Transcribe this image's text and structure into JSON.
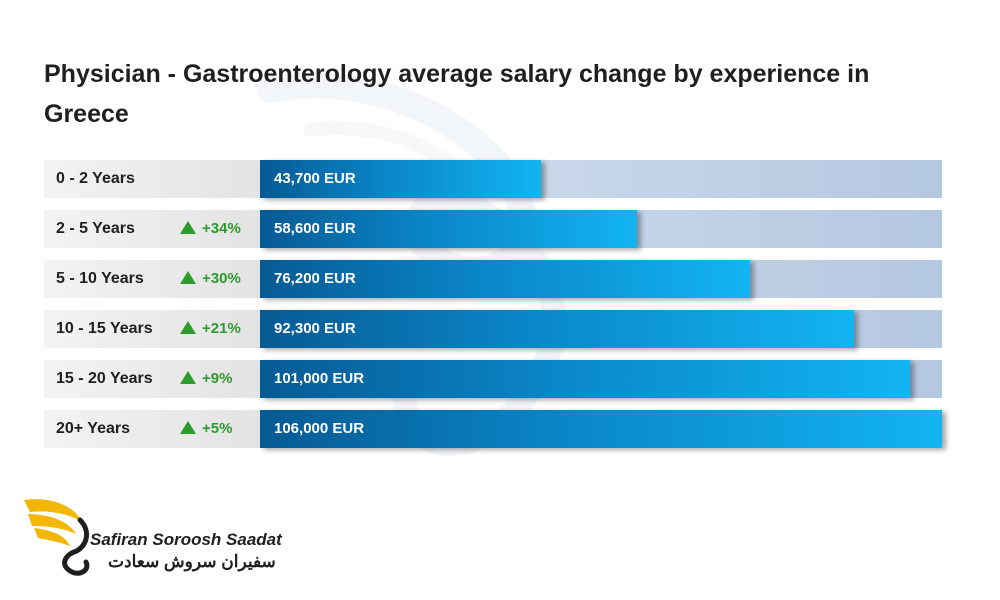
{
  "title": "Physician - Gastroenterology average salary change by experience in Greece",
  "chart_data": {
    "type": "bar",
    "orientation": "horizontal",
    "title": "Physician - Gastroenterology average salary change by experience in Greece",
    "categories": [
      "0 - 2 Years",
      "2 - 5 Years",
      "5 - 10 Years",
      "10 - 15 Years",
      "15 - 20 Years",
      "20+ Years"
    ],
    "values": [
      43700,
      58600,
      76200,
      92300,
      101000,
      106000
    ],
    "value_labels": [
      "43,700 EUR",
      "58,600 EUR",
      "76,200 EUR",
      "92,300 EUR",
      "101,000 EUR",
      "106,000 EUR"
    ],
    "changes": [
      "",
      "+34%",
      "+30%",
      "+21%",
      "+9%",
      "+5%"
    ],
    "unit": "EUR",
    "xlim": [
      0,
      106000
    ],
    "colors": {
      "bar": "#0a86c8",
      "track": "#c6d5e8",
      "up": "#2e9b2e"
    }
  },
  "logo": {
    "name_en": "Safiran Soroosh Saadat",
    "name_fa": "سفیران سروش سعادت",
    "accent": "#f2b705"
  }
}
